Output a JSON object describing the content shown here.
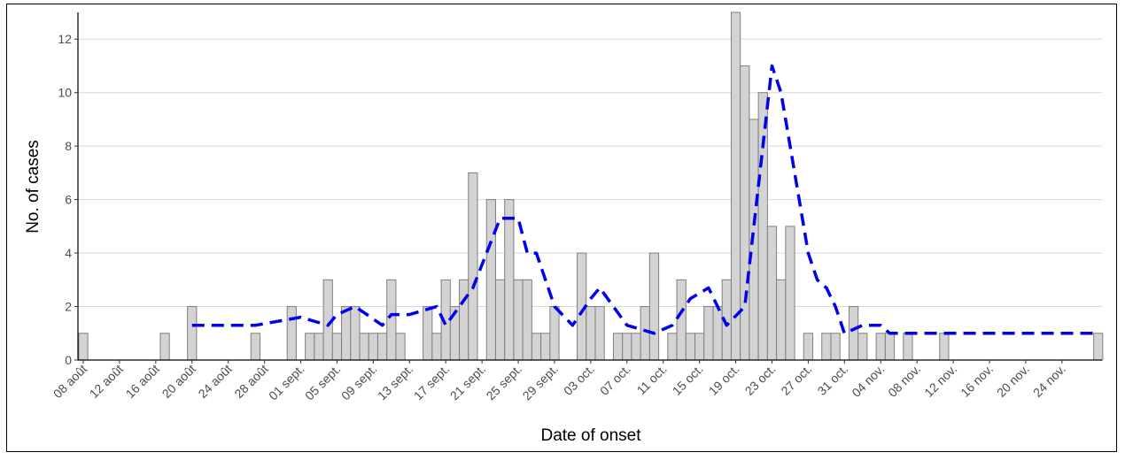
{
  "chart_data": {
    "type": "bar",
    "title": "",
    "xlabel": "Date of onset",
    "ylabel": "No. of cases",
    "x_start_label": "08 août",
    "ylim": [
      0,
      13
    ],
    "yticks": [
      0,
      2,
      4,
      6,
      8,
      10,
      12
    ],
    "grid": "horizontal",
    "legend": "none",
    "bar_color": "#d3d3d3",
    "bar_edge_color": "#7f7f7f",
    "line_color": "#0000ee",
    "xtick_labels": [
      "08 août",
      "12 août",
      "16 août",
      "20 août",
      "24 août",
      "28 août",
      "01 sept.",
      "05 sept.",
      "09 sept.",
      "13 sept.",
      "17 sept.",
      "21 sept.",
      "25 sept.",
      "29 sept.",
      "03 oct.",
      "07 oct.",
      "11 oct.",
      "15 oct.",
      "19 oct.",
      "23 oct.",
      "27 oct.",
      "31 oct.",
      "04 nov.",
      "08 nov.",
      "12 nov.",
      "16 nov.",
      "20 nov.",
      "24 nov."
    ],
    "bars": [
      {
        "x": "08 août",
        "y": 1
      },
      {
        "x": "17 août",
        "y": 1
      },
      {
        "x": "20 août",
        "y": 2
      },
      {
        "x": "27 août",
        "y": 1
      },
      {
        "x": "31 août",
        "y": 2
      },
      {
        "x": "02 sept.",
        "y": 1
      },
      {
        "x": "03 sept.",
        "y": 1
      },
      {
        "x": "04 sept.",
        "y": 3
      },
      {
        "x": "05 sept.",
        "y": 1
      },
      {
        "x": "06 sept.",
        "y": 2
      },
      {
        "x": "07 sept.",
        "y": 2
      },
      {
        "x": "08 sept.",
        "y": 1
      },
      {
        "x": "09 sept.",
        "y": 1
      },
      {
        "x": "10 sept.",
        "y": 1
      },
      {
        "x": "11 sept.",
        "y": 3
      },
      {
        "x": "12 sept.",
        "y": 1
      },
      {
        "x": "15 sept.",
        "y": 2
      },
      {
        "x": "16 sept.",
        "y": 1
      },
      {
        "x": "17 sept.",
        "y": 3
      },
      {
        "x": "18 sept.",
        "y": 2
      },
      {
        "x": "19 sept.",
        "y": 3
      },
      {
        "x": "20 sept.",
        "y": 7
      },
      {
        "x": "22 sept.",
        "y": 6
      },
      {
        "x": "23 sept.",
        "y": 3
      },
      {
        "x": "24 sept.",
        "y": 6
      },
      {
        "x": "25 sept.",
        "y": 3
      },
      {
        "x": "26 sept.",
        "y": 3
      },
      {
        "x": "27 sept.",
        "y": 1
      },
      {
        "x": "28 sept.",
        "y": 1
      },
      {
        "x": "29 sept.",
        "y": 2
      },
      {
        "x": "02 oct.",
        "y": 4
      },
      {
        "x": "03 oct.",
        "y": 2
      },
      {
        "x": "04 oct.",
        "y": 2
      },
      {
        "x": "06 oct.",
        "y": 1
      },
      {
        "x": "07 oct.",
        "y": 1
      },
      {
        "x": "08 oct.",
        "y": 1
      },
      {
        "x": "09 oct.",
        "y": 2
      },
      {
        "x": "10 oct.",
        "y": 4
      },
      {
        "x": "12 oct.",
        "y": 1
      },
      {
        "x": "13 oct.",
        "y": 3
      },
      {
        "x": "14 oct.",
        "y": 1
      },
      {
        "x": "15 oct.",
        "y": 1
      },
      {
        "x": "16 oct.",
        "y": 2
      },
      {
        "x": "17 oct.",
        "y": 2
      },
      {
        "x": "18 oct.",
        "y": 3
      },
      {
        "x": "19 oct.",
        "y": 13
      },
      {
        "x": "20 oct.",
        "y": 11
      },
      {
        "x": "21 oct.",
        "y": 9
      },
      {
        "x": "22 oct.",
        "y": 10
      },
      {
        "x": "23 oct.",
        "y": 5
      },
      {
        "x": "24 oct.",
        "y": 3
      },
      {
        "x": "25 oct.",
        "y": 5
      },
      {
        "x": "27 oct.",
        "y": 1
      },
      {
        "x": "29 oct.",
        "y": 1
      },
      {
        "x": "30 oct.",
        "y": 1
      },
      {
        "x": "01 nov.",
        "y": 2
      },
      {
        "x": "02 nov.",
        "y": 1
      },
      {
        "x": "04 nov.",
        "y": 1
      },
      {
        "x": "05 nov.",
        "y": 1
      },
      {
        "x": "07 nov.",
        "y": 1
      },
      {
        "x": "11 nov.",
        "y": 1
      },
      {
        "x": "28 nov.",
        "y": 1
      }
    ],
    "line": [
      {
        "x": "20 août",
        "y": 1.3
      },
      {
        "x": "27 août",
        "y": 1.3
      },
      {
        "x": "01 sept.",
        "y": 1.6
      },
      {
        "x": "04 sept.",
        "y": 1.3
      },
      {
        "x": "05 sept.",
        "y": 1.7
      },
      {
        "x": "07 sept.",
        "y": 2
      },
      {
        "x": "10 sept.",
        "y": 1.3
      },
      {
        "x": "11 sept.",
        "y": 1.7
      },
      {
        "x": "13 sept.",
        "y": 1.7
      },
      {
        "x": "16 sept.",
        "y": 2
      },
      {
        "x": "17 sept.",
        "y": 1.3
      },
      {
        "x": "20 sept.",
        "y": 2.7
      },
      {
        "x": "23 sept.",
        "y": 5.3
      },
      {
        "x": "25 sept.",
        "y": 5.3
      },
      {
        "x": "26 sept.",
        "y": 4
      },
      {
        "x": "27 sept.",
        "y": 4
      },
      {
        "x": "29 sept.",
        "y": 2
      },
      {
        "x": "01 oct.",
        "y": 1.3
      },
      {
        "x": "03 oct.",
        "y": 2.3
      },
      {
        "x": "04 oct.",
        "y": 2.7
      },
      {
        "x": "07 oct.",
        "y": 1.3
      },
      {
        "x": "10 oct.",
        "y": 1
      },
      {
        "x": "12 oct.",
        "y": 1.3
      },
      {
        "x": "14 oct.",
        "y": 2.3
      },
      {
        "x": "16 oct.",
        "y": 2.7
      },
      {
        "x": "18 oct.",
        "y": 1.3
      },
      {
        "x": "20 oct.",
        "y": 2
      },
      {
        "x": "21 oct.",
        "y": 5
      },
      {
        "x": "23 oct.",
        "y": 11
      },
      {
        "x": "24 oct.",
        "y": 10
      },
      {
        "x": "26 oct.",
        "y": 6
      },
      {
        "x": "27 oct.",
        "y": 4
      },
      {
        "x": "28 oct.",
        "y": 3
      },
      {
        "x": "29 oct.",
        "y": 2.7
      },
      {
        "x": "30 oct.",
        "y": 2
      },
      {
        "x": "31 oct.",
        "y": 1
      },
      {
        "x": "02 nov.",
        "y": 1.3
      },
      {
        "x": "04 nov.",
        "y": 1.3
      },
      {
        "x": "05 nov.",
        "y": 1
      },
      {
        "x": "07 nov.",
        "y": 1
      },
      {
        "x": "28 nov.",
        "y": 1
      }
    ]
  }
}
